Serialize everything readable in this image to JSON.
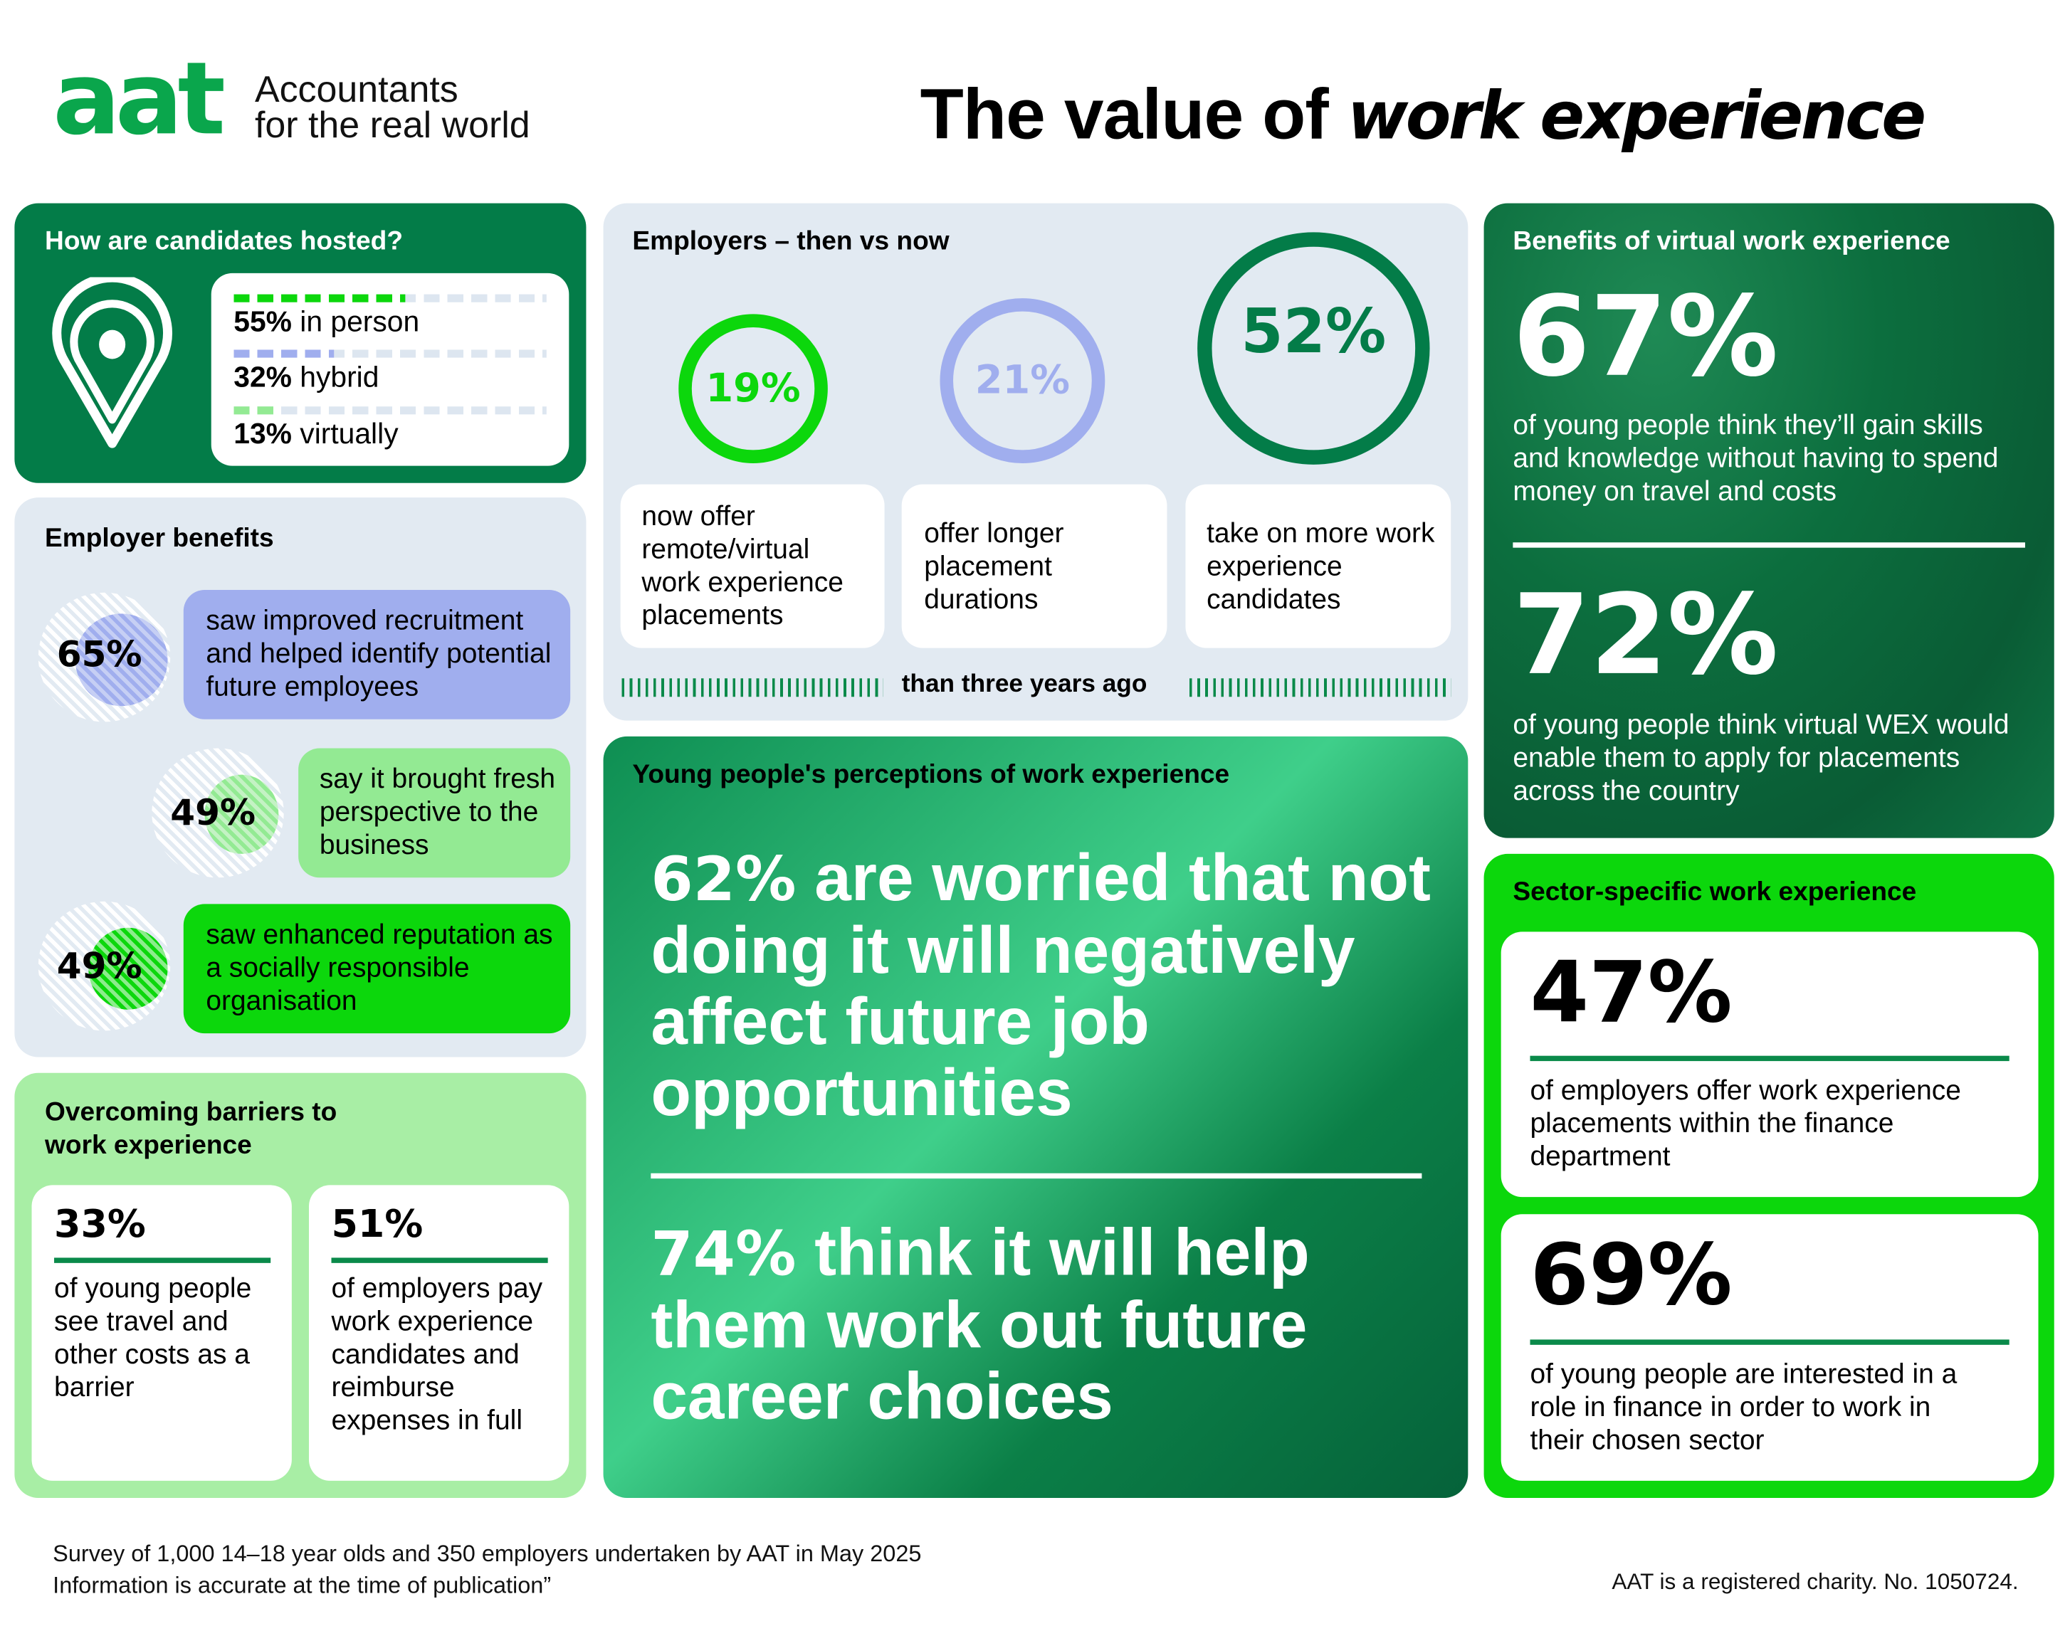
{
  "header": {
    "logo_mark": "aat",
    "logo_tagline_1": "Accountants",
    "logo_tagline_2": "for the real world",
    "title_regular": "The value of ",
    "title_emphasis": "work experience"
  },
  "hosted": {
    "title": "How are candidates hosted?",
    "icon": "location-pin-icon",
    "items": [
      {
        "pct": "55%",
        "label": " in person",
        "value": 55,
        "color": "#0cd70c"
      },
      {
        "pct": "32%",
        "label": " hybrid",
        "value": 32,
        "color": "#a0aeee"
      },
      {
        "pct": "13%",
        "label": " virtually",
        "value": 13,
        "color": "#93ea93"
      }
    ]
  },
  "employer_benefits": {
    "title": "Employer benefits",
    "items": [
      {
        "pct": "65%",
        "text": "saw improved recruitment and helped identify potential future employees",
        "color": "#a0aeee"
      },
      {
        "pct": "49%",
        "text": "say it brought fresh perspective to the business",
        "color": "#93ea93"
      },
      {
        "pct": "49%",
        "text": "saw enhanced reputation as a socially responsible organisation",
        "color": "#0cd70c"
      }
    ]
  },
  "barriers": {
    "title": "Overcoming barriers to work experience",
    "items": [
      {
        "pct": "33%",
        "text": "of young people see travel and other costs as a barrier"
      },
      {
        "pct": "51%",
        "text": "of employers pay work experience candidates and reimburse expenses in full"
      }
    ]
  },
  "then_vs_now": {
    "title": "Employers – then vs now",
    "items": [
      {
        "pct": "19%",
        "text": "now offer remote/virtual work experience placements",
        "color": "#0cd70c"
      },
      {
        "pct": "21%",
        "text": "offer longer placement durations",
        "color": "#a0aeee"
      },
      {
        "pct": "52%",
        "text": "take on more work experience candidates",
        "color": "#037c48"
      }
    ],
    "footer": "than three years ago"
  },
  "perceptions": {
    "title": "Young people's perceptions of work experience",
    "stat1_pct": "62%",
    "stat1_text": " are worried that not doing it will negatively affect future job opportunities",
    "stat2_pct": "74%",
    "stat2_text": " think it will help them work out future career choices"
  },
  "virtual_benefits": {
    "title": "Benefits of virtual work experience",
    "items": [
      {
        "pct": "67%",
        "text": "of young people think they’ll gain skills and knowledge without having to spend money on travel and costs"
      },
      {
        "pct": "72%",
        "text": "of young people think virtual WEX would enable them to apply for placements across the country"
      }
    ]
  },
  "sector": {
    "title": "Sector-specific work experience",
    "items": [
      {
        "pct": "47%",
        "text": "of employers offer work experience placements within the finance department"
      },
      {
        "pct": "69%",
        "text": "of young people are interested in a role in finance in order to work in their chosen sector"
      }
    ]
  },
  "footer": {
    "survey": "Survey of 1,000 14–18 year olds and 350 employers undertaken by AAT in May 2025",
    "accuracy": "Information is accurate at the time of publication”",
    "charity": "AAT is a registered charity. No. 1050724."
  },
  "colors": {
    "dark_green": "#037c48",
    "bright_green": "#0cd70c",
    "light_green": "#a8eea5",
    "lavender": "#a0aeee",
    "pale_blue": "#e2eaf2"
  }
}
